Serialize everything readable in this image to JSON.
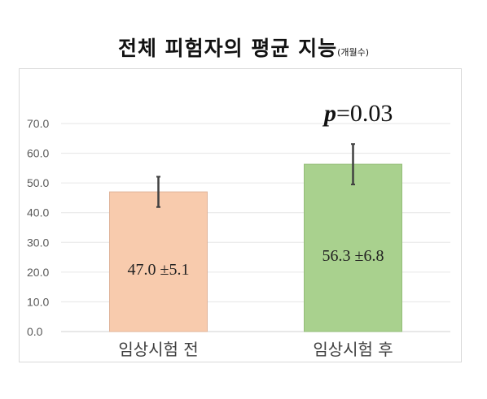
{
  "chart_data": {
    "type": "bar",
    "title": "전체 피험자의 평균 지능",
    "title_unit": "(개월수)",
    "categories": [
      "임상시험 전",
      "임상시험 후"
    ],
    "values": [
      47.0,
      56.3
    ],
    "errors": [
      5.1,
      6.8
    ],
    "value_labels": [
      "47.0 ±5.1",
      "56.3 ±6.8"
    ],
    "bar_colors": [
      "#f8cbad",
      "#a9d18e"
    ],
    "bar_edge_colors": [
      "#e0b49a",
      "#93bd78"
    ],
    "ylim": [
      0,
      70
    ],
    "y_ticks": [
      "0.0",
      "10.0",
      "20.0",
      "30.0",
      "40.0",
      "50.0",
      "60.0",
      "70.0"
    ],
    "grid": true,
    "annotation": {
      "p_label": "p",
      "p_value": "=0.03"
    },
    "xlabel": "",
    "ylabel": ""
  }
}
